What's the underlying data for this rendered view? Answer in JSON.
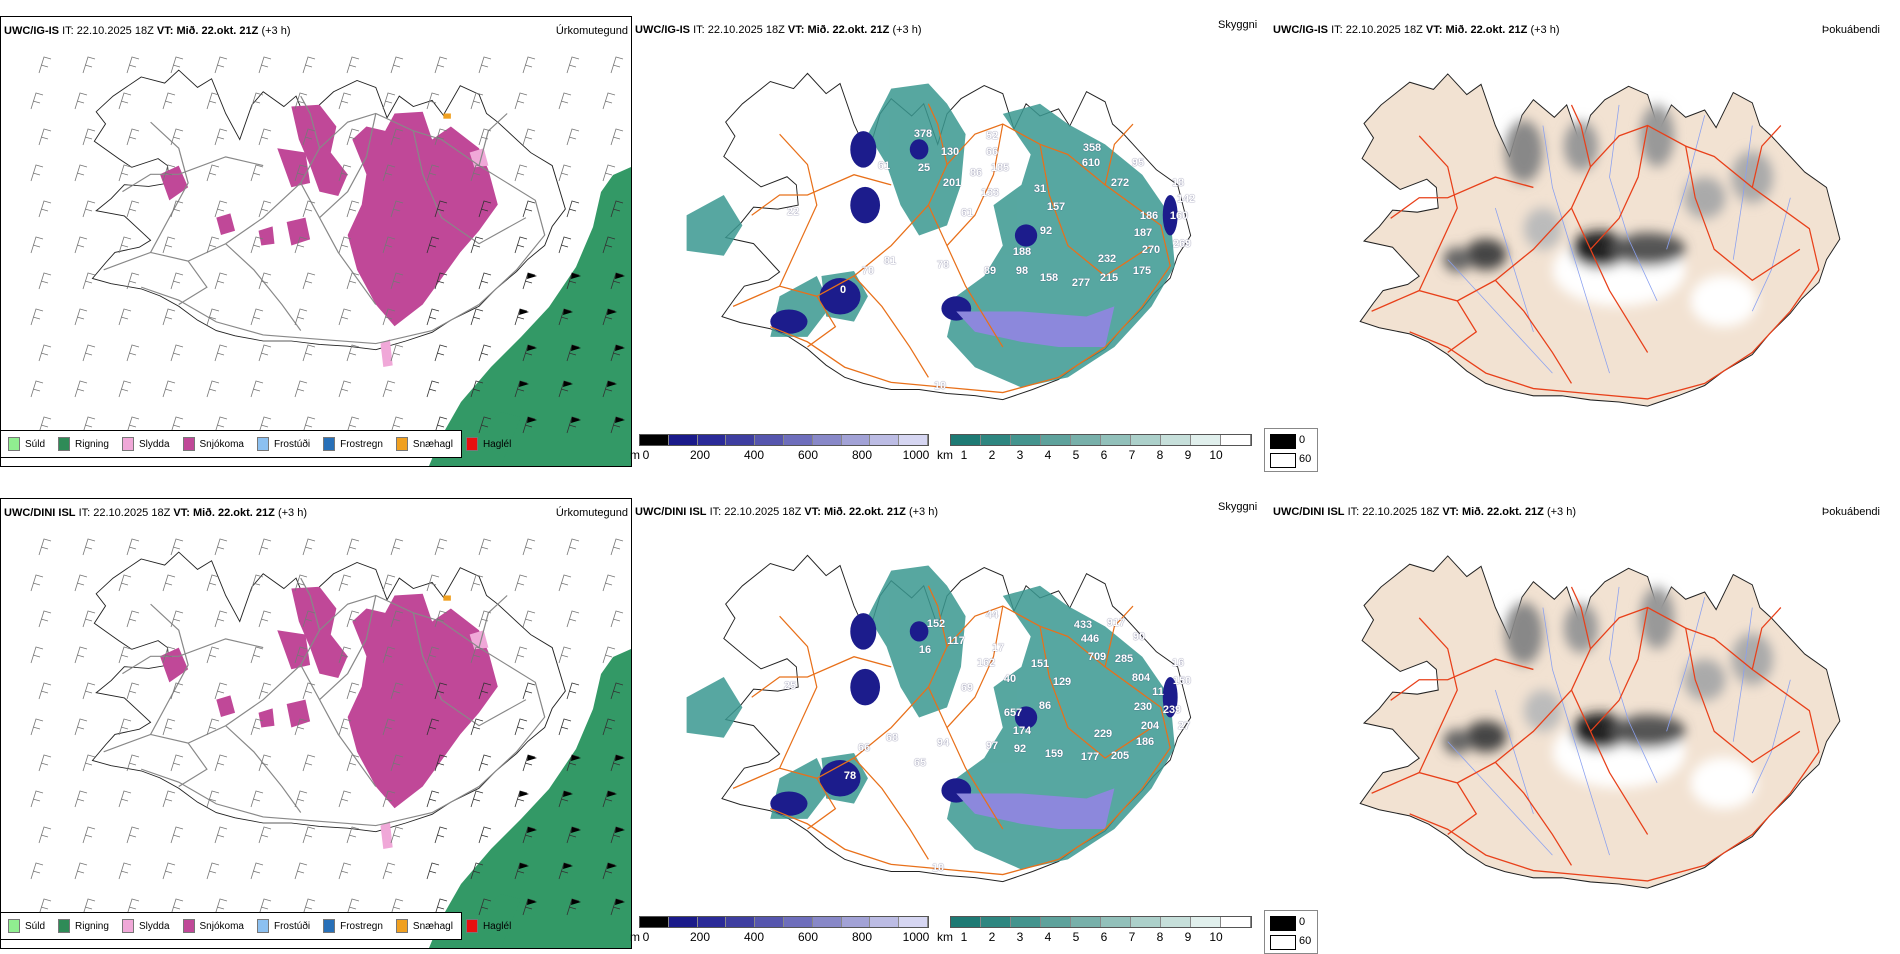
{
  "rows": [
    {
      "model": "UWC/IG-IS",
      "init_label": "IT:",
      "init_time": "22.10.2025 18Z",
      "valid_label": "VT:",
      "valid_time": "Mið. 22.okt. 21Z",
      "lead": "(+3 h)",
      "visibility_labels": [
        "378",
        "61",
        "25",
        "130",
        "86",
        "52",
        "66",
        "185",
        "201",
        "133",
        "61",
        "22",
        "31",
        "157",
        "92",
        "188",
        "358",
        "610",
        "272",
        "95",
        "18",
        "142",
        "186",
        "160",
        "187",
        "269",
        "270",
        "232",
        "175",
        "215",
        "277",
        "158",
        "98",
        "89",
        "78",
        "81",
        "70",
        "0",
        "10"
      ]
    },
    {
      "model": "UWC/DINI ISL",
      "init_label": "IT:",
      "init_time": "22.10.2025 18Z",
      "valid_label": "VT:",
      "valid_time": "Mið. 22.okt. 21Z",
      "lead": "(+3 h)",
      "visibility_labels": [
        "44",
        "152",
        "117",
        "16",
        "17",
        "162",
        "40",
        "69",
        "25",
        "151",
        "129",
        "433",
        "917",
        "446",
        "709",
        "285",
        "90",
        "804",
        "16",
        "150",
        "11",
        "230",
        "239",
        "27",
        "204",
        "186",
        "229",
        "205",
        "177",
        "159",
        "92",
        "97",
        "174",
        "657",
        "86",
        "94",
        "68",
        "66",
        "78",
        "65",
        "10"
      ]
    }
  ],
  "panel_titles": {
    "precip_type": "Úrkomutegund",
    "visibility": "Skyggni",
    "fog": "Þokuábendi"
  },
  "precip_legend": [
    {
      "label": "Súld",
      "color": "#90ee90"
    },
    {
      "label": "Rigning",
      "color": "#2e8b57"
    },
    {
      "label": "Slydda",
      "color": "#f0a8d8"
    },
    {
      "label": "Snjókoma",
      "color": "#c04898"
    },
    {
      "label": "Frostúði",
      "color": "#8cc0f0"
    },
    {
      "label": "Frostregn",
      "color": "#2870b8"
    },
    {
      "label": "Snæhagl",
      "color": "#f0a020"
    },
    {
      "label": "Haglél",
      "color": "#e81010"
    }
  ],
  "vis_m_scale": {
    "unit": "m",
    "ticks": [
      "0",
      "200",
      "400",
      "600",
      "800",
      "1000"
    ],
    "colors": [
      "#000000",
      "#1a1a8a",
      "#2a2a98",
      "#3e3ea0",
      "#5656ae",
      "#6e6ebc",
      "#8888c8",
      "#a2a2d6",
      "#bcbce4",
      "#d6d6f2"
    ]
  },
  "vis_km_scale": {
    "unit": "km",
    "ticks": [
      "1",
      "2",
      "3",
      "4",
      "5",
      "6",
      "7",
      "8",
      "9",
      "10"
    ],
    "colors": [
      "#1e7a74",
      "#2e8680",
      "#44948e",
      "#5ea29c",
      "#78b0aa",
      "#92c0ba",
      "#acd0ca",
      "#c6dfda",
      "#e0efec",
      "#ffffff"
    ]
  },
  "fog_legend": {
    "values": [
      "0",
      "60"
    ],
    "colors": [
      "#000000",
      "#ffffff"
    ]
  },
  "colors": {
    "snow": "#c04898",
    "rain_sea": "#339966",
    "teal": "#2a8a82",
    "roads": "#e8701a",
    "fog_land": "#f2e2d2",
    "rivers": "#8aa0f0"
  }
}
